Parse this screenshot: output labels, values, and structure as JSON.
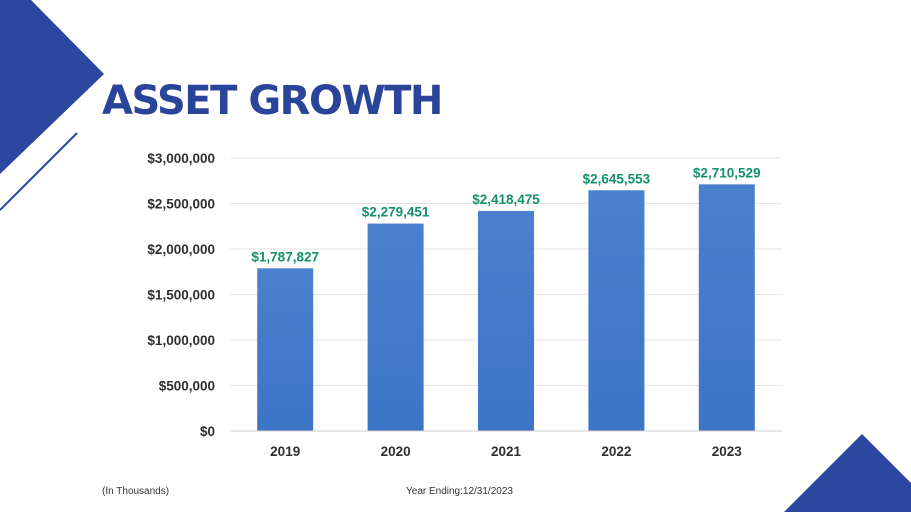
{
  "slide": {
    "title": "ASSET GROWTH",
    "footnote_left": "(In Thousands)",
    "footnote_center": "Year Ending:12/31/2023"
  },
  "colors": {
    "title": "#2a4499",
    "accent": "#2c47a0",
    "bar_top": "#4a80cd",
    "bar_bottom": "#3d75c6",
    "data_label": "#13906c",
    "gridline": "#e3e3e3",
    "axis": "#cfcfcf"
  },
  "chart_data": {
    "type": "bar",
    "title": "ASSET GROWTH",
    "categories": [
      "2019",
      "2020",
      "2021",
      "2022",
      "2023"
    ],
    "values": [
      1787827,
      2279451,
      2418475,
      2645553,
      2710529
    ],
    "data_labels": [
      "$1,787,827",
      "$2,279,451",
      "$2,418,475",
      "$2,645,553",
      "$2,710,529"
    ],
    "y_ticks": [
      0,
      500000,
      1000000,
      1500000,
      2000000,
      2500000,
      3000000
    ],
    "y_tick_labels": [
      "$0",
      "$500,000",
      "$1,000,000",
      "$1,500,000",
      "$2,000,000",
      "$2,500,000",
      "$3,000,000"
    ],
    "ylim": [
      0,
      3000000
    ],
    "xlabel": "",
    "ylabel": "",
    "grid": true,
    "legend": "none"
  }
}
